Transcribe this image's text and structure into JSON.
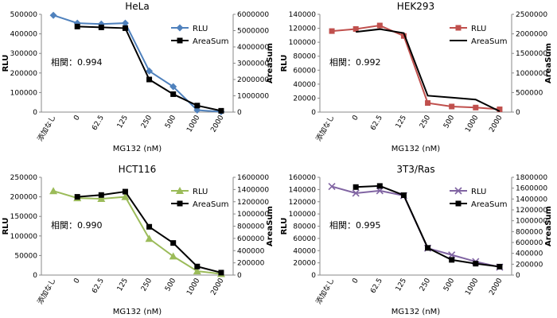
{
  "chart_data": [
    {
      "type": "line",
      "title": "HeLa",
      "categories": [
        "添加なし",
        "0",
        "62.5",
        "125",
        "250",
        "500",
        "1000",
        "2000"
      ],
      "xlabel": "MG132 (nM)",
      "ylabel": "RLU",
      "y2label": "AreaSum",
      "ylim": [
        0,
        500000
      ],
      "yticks": [
        0,
        100000,
        200000,
        300000,
        400000,
        500000
      ],
      "y2lim": [
        0,
        6000000
      ],
      "y2ticks": [
        0,
        1000000,
        2000000,
        3000000,
        4000000,
        5000000,
        6000000
      ],
      "annotation": "相関：0.994",
      "legend_position": "top-right",
      "series": [
        {
          "name": "RLU",
          "axis": "left",
          "color": "#4F81BD",
          "marker": "diamond",
          "values": [
            495000,
            455000,
            450000,
            455000,
            210000,
            130000,
            10000,
            2000
          ]
        },
        {
          "name": "AreaSum",
          "axis": "right",
          "color": "#000000",
          "marker": "square",
          "values": [
            null,
            5250000,
            5200000,
            5150000,
            2000000,
            1100000,
            400000,
            80000
          ]
        }
      ]
    },
    {
      "type": "line",
      "title": "HEK293",
      "categories": [
        "添加なし",
        "0",
        "62.5",
        "125",
        "250",
        "500",
        "1000",
        "2000"
      ],
      "xlabel": "MG132 (nM)",
      "ylabel": "RLU",
      "y2label": "AreaSum",
      "ylim": [
        0,
        140000
      ],
      "yticks": [
        0,
        20000,
        40000,
        60000,
        80000,
        100000,
        120000,
        140000
      ],
      "y2lim": [
        0,
        2500000
      ],
      "y2ticks": [
        0,
        500000,
        1000000,
        1500000,
        2000000,
        2500000
      ],
      "annotation": "相関：0.992",
      "legend_position": "top-right",
      "series": [
        {
          "name": "RLU",
          "axis": "left",
          "color": "#C0504D",
          "marker": "square",
          "values": [
            116000,
            119000,
            124000,
            109000,
            13000,
            8000,
            6500,
            4000
          ]
        },
        {
          "name": "AreaSum",
          "axis": "right",
          "color": "#000000",
          "marker": "none",
          "values": [
            null,
            2050000,
            2120000,
            2020000,
            420000,
            370000,
            320000,
            20000
          ]
        }
      ]
    },
    {
      "type": "line",
      "title": "HCT116",
      "categories": [
        "添加なし",
        "0",
        "62.5",
        "125",
        "250",
        "500",
        "1000",
        "2000"
      ],
      "xlabel": "MG132 (nM)",
      "ylabel": "RLU",
      "y2label": "AreaSum",
      "ylim": [
        0,
        250000
      ],
      "yticks": [
        0,
        50000,
        100000,
        150000,
        200000,
        250000
      ],
      "y2lim": [
        0,
        1600000
      ],
      "y2ticks": [
        0,
        200000,
        400000,
        600000,
        800000,
        1000000,
        1200000,
        1400000,
        1600000
      ],
      "annotation": "相関：0.990",
      "legend_position": "top-right",
      "series": [
        {
          "name": "RLU",
          "axis": "left",
          "color": "#9BBB59",
          "marker": "triangle",
          "values": [
            215000,
            197000,
            195000,
            200000,
            93000,
            48000,
            10000,
            3000
          ]
        },
        {
          "name": "AreaSum",
          "axis": "right",
          "color": "#000000",
          "marker": "square",
          "values": [
            null,
            1280000,
            1310000,
            1365000,
            790000,
            525000,
            140000,
            40000
          ]
        }
      ]
    },
    {
      "type": "line",
      "title": "3T3/Ras",
      "categories": [
        "添加なし",
        "0",
        "62.5",
        "125",
        "250",
        "500",
        "1000",
        "2000"
      ],
      "xlabel": "MG132 (nM)",
      "ylabel": "RLU",
      "y2label": "AreaSum",
      "ylim": [
        0,
        160000
      ],
      "yticks": [
        0,
        20000,
        40000,
        60000,
        80000,
        100000,
        120000,
        140000,
        160000
      ],
      "y2lim": [
        0,
        1800000
      ],
      "y2ticks": [
        0,
        200000,
        400000,
        600000,
        800000,
        1000000,
        1200000,
        1400000,
        1600000,
        1800000
      ],
      "annotation": "相関：0.995",
      "legend_position": "top-right",
      "series": [
        {
          "name": "RLU",
          "axis": "left",
          "color": "#8064A2",
          "marker": "cross",
          "values": [
            145000,
            134000,
            138000,
            130000,
            44000,
            33000,
            22000,
            13000
          ]
        },
        {
          "name": "AreaSum",
          "axis": "right",
          "color": "#000000",
          "marker": "square",
          "values": [
            null,
            1620000,
            1640000,
            1470000,
            500000,
            280000,
            210000,
            155000
          ]
        }
      ]
    }
  ]
}
